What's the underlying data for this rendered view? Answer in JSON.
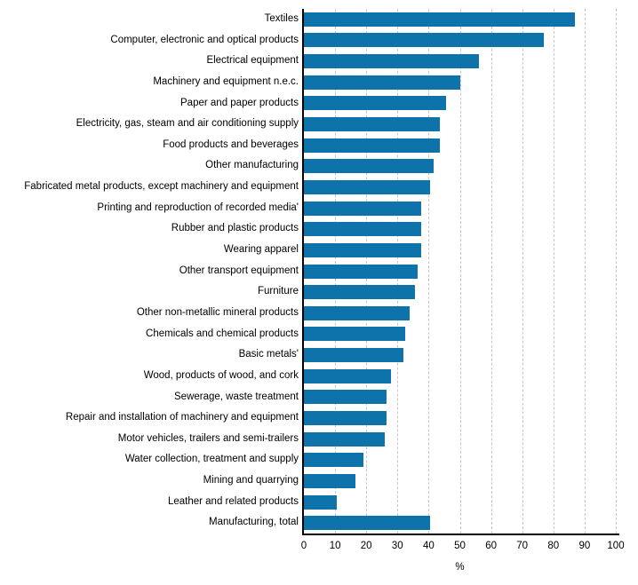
{
  "chart_data": {
    "type": "bar",
    "orientation": "horizontal",
    "title": "",
    "xlabel": "%",
    "ylabel": "",
    "xlim": [
      0,
      100
    ],
    "xticks": [
      0,
      10,
      20,
      30,
      40,
      50,
      60,
      70,
      80,
      90,
      100
    ],
    "grid": "vertical-dashed",
    "legend_position": "none",
    "categories": [
      "Textiles",
      "Computer, electronic and optical products",
      "Electrical equipment",
      "Machinery and equipment n.e.c.",
      "Paper and paper products",
      "Electricity, gas, steam and air conditioning supply",
      "Food products and beverages",
      "Other manufacturing",
      "Fabricated metal products, except machinery and equipment",
      "Printing and reproduction of recorded media'",
      "Rubber and plastic products",
      "Wearing apparel",
      "Other transport equipment",
      "Furniture",
      "Other non-metallic mineral products",
      "Chemicals and chemical products",
      "Basic metals'",
      "Wood, products of wood, and cork",
      "Sewerage, waste treatment",
      "Repair and installation of machinery and equipment",
      "Motor vehicles, trailers and semi-trailers",
      "Water collection, treatment and supply",
      "Mining and quarrying",
      "Leather and related products",
      "Manufacturing, total"
    ],
    "values": [
      87,
      77,
      56,
      50,
      45.5,
      43.5,
      43.5,
      41.5,
      40.5,
      37.5,
      37.5,
      37.5,
      36.5,
      35.5,
      34,
      32.5,
      32,
      28,
      26.5,
      26.5,
      26,
      19,
      16.5,
      10.5,
      40.5
    ]
  },
  "colors": {
    "bar": "#0e72ab",
    "grid": "#c6c6c6",
    "axis": "#000000",
    "background": "#ffffff",
    "text": "#000000"
  }
}
